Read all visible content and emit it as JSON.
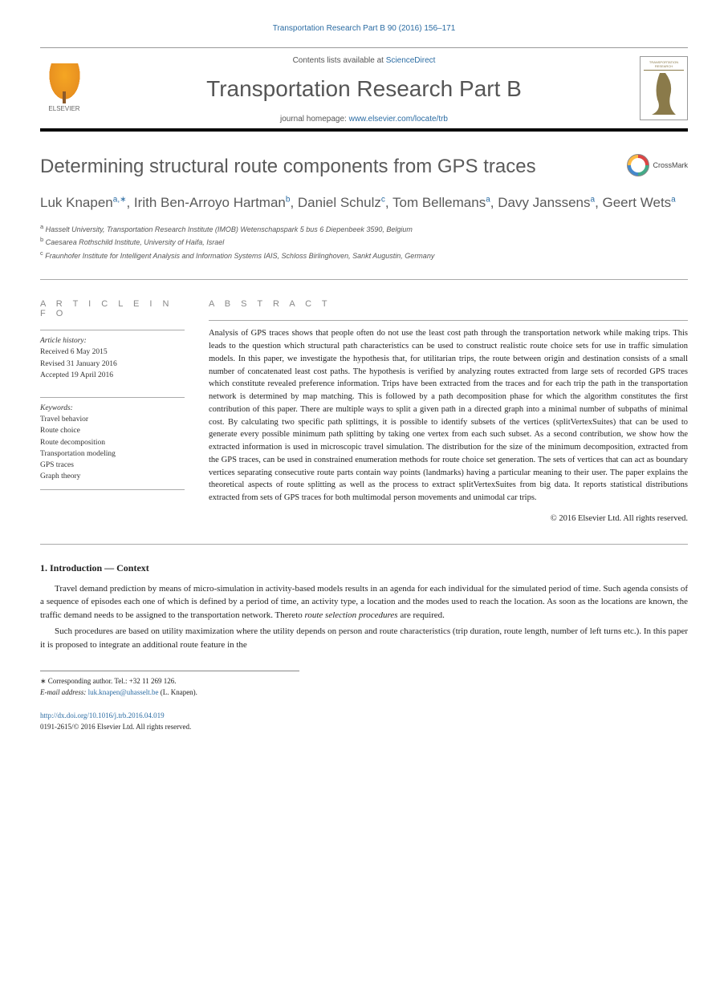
{
  "journal_ref": "Transportation Research Part B 90 (2016) 156–171",
  "masthead": {
    "contents_prefix": "Contents lists available at ",
    "contents_link": "ScienceDirect",
    "journal_title": "Transportation Research Part B",
    "homepage_prefix": "journal homepage: ",
    "homepage_link": "www.elsevier.com/locate/trb",
    "elsevier_label": "ELSEVIER",
    "cover_text": "TRANSPORTATION RESEARCH"
  },
  "article_title": "Determining structural route components from GPS traces",
  "crossmark_label": "CrossMark",
  "authors_html": "Luk Knapen<sup><a>a</a>,∗</sup>, Irith Ben-Arroyo Hartman<sup><a>b</a></sup>, Daniel Schulz<sup><a>c</a></sup>, Tom Bellemans<sup><a>a</a></sup>, Davy Janssens<sup><a>a</a></sup>, Geert Wets<sup><a>a</a></sup>",
  "affiliations": [
    "<sup>a</sup> Hasselt University, Transportation Research Institute (IMOB) Wetenschapspark 5 bus 6 Diepenbeek 3590, Belgium",
    "<sup>b</sup> Caesarea Rothschild Institute, University of Haifa, Israel",
    "<sup>c</sup> Fraunhofer Institute for Intelligent Analysis and Information Systems IAIS, Schloss Birlinghoven, Sankt Augustin, Germany"
  ],
  "info": {
    "heading": "A R T I C L E   I N F O",
    "history_label": "Article history:",
    "history": [
      "Received 6 May 2015",
      "Revised 31 January 2016",
      "Accepted 19 April 2016"
    ],
    "keywords_label": "Keywords:",
    "keywords": [
      "Travel behavior",
      "Route choice",
      "Route decomposition",
      "Transportation modeling",
      "GPS traces",
      "Graph theory"
    ]
  },
  "abstract": {
    "heading": "A B S T R A C T",
    "text": "Analysis of GPS traces shows that people often do not use the least cost path through the transportation network while making trips. This leads to the question which structural path characteristics can be used to construct realistic route choice sets for use in traffic simulation models. In this paper, we investigate the hypothesis that, for utilitarian trips, the route between origin and destination consists of a small number of concatenated least cost paths. The hypothesis is verified by analyzing routes extracted from large sets of recorded GPS traces which constitute revealed preference information. Trips have been extracted from the traces and for each trip the path in the transportation network is determined by map matching. This is followed by a path decomposition phase for which the algorithm constitutes the first contribution of this paper. There are multiple ways to split a given path in a directed graph into a minimal number of subpaths of minimal cost. By calculating two specific path splittings, it is possible to identify subsets of the vertices (splitVertexSuites) that can be used to generate every possible minimum path splitting by taking one vertex from each such subset. As a second contribution, we show how the extracted information is used in microscopic travel simulation. The distribution for the size of the minimum decomposition, extracted from the GPS traces, can be used in constrained enumeration methods for route choice set generation. The sets of vertices that can act as boundary vertices separating consecutive route parts contain way points (landmarks) having a particular meaning to their user. The paper explains the theoretical aspects of route splitting as well as the process to extract splitVertexSuites from big data. It reports statistical distributions extracted from sets of GPS traces for both multimodal person movements and unimodal car trips.",
    "copyright": "© 2016 Elsevier Ltd. All rights reserved."
  },
  "section1": {
    "heading": "1. Introduction — Context",
    "para1": "Travel demand prediction by means of micro-simulation in activity-based models results in an agenda for each individual for the simulated period of time. Such agenda consists of a sequence of episodes each one of which is defined by a period of time, an activity type, a location and the modes used to reach the location. As soon as the locations are known, the traffic demand needs to be assigned to the transportation network. Thereto route selection procedures are required.",
    "para2": "Such procedures are based on utility maximization where the utility depends on person and route characteristics (trip duration, route length, number of left turns etc.). In this paper it is proposed to integrate an additional route feature in the"
  },
  "footnotes": {
    "corresponding": "∗ Corresponding author. Tel.: +32 11 269 126.",
    "email_label": "E-mail address: ",
    "email": "luk.knapen@uhasselt.be",
    "email_author": " (L. Knapen)."
  },
  "footer": {
    "doi": "http://dx.doi.org/10.1016/j.trb.2016.04.019",
    "issn_line": "0191-2615/© 2016 Elsevier Ltd. All rights reserved."
  },
  "colors": {
    "link": "#2b6ca3",
    "heading_gray": "#5a5a5a",
    "text": "#222222",
    "muted": "#888888",
    "olive": "#8a7a4a"
  }
}
